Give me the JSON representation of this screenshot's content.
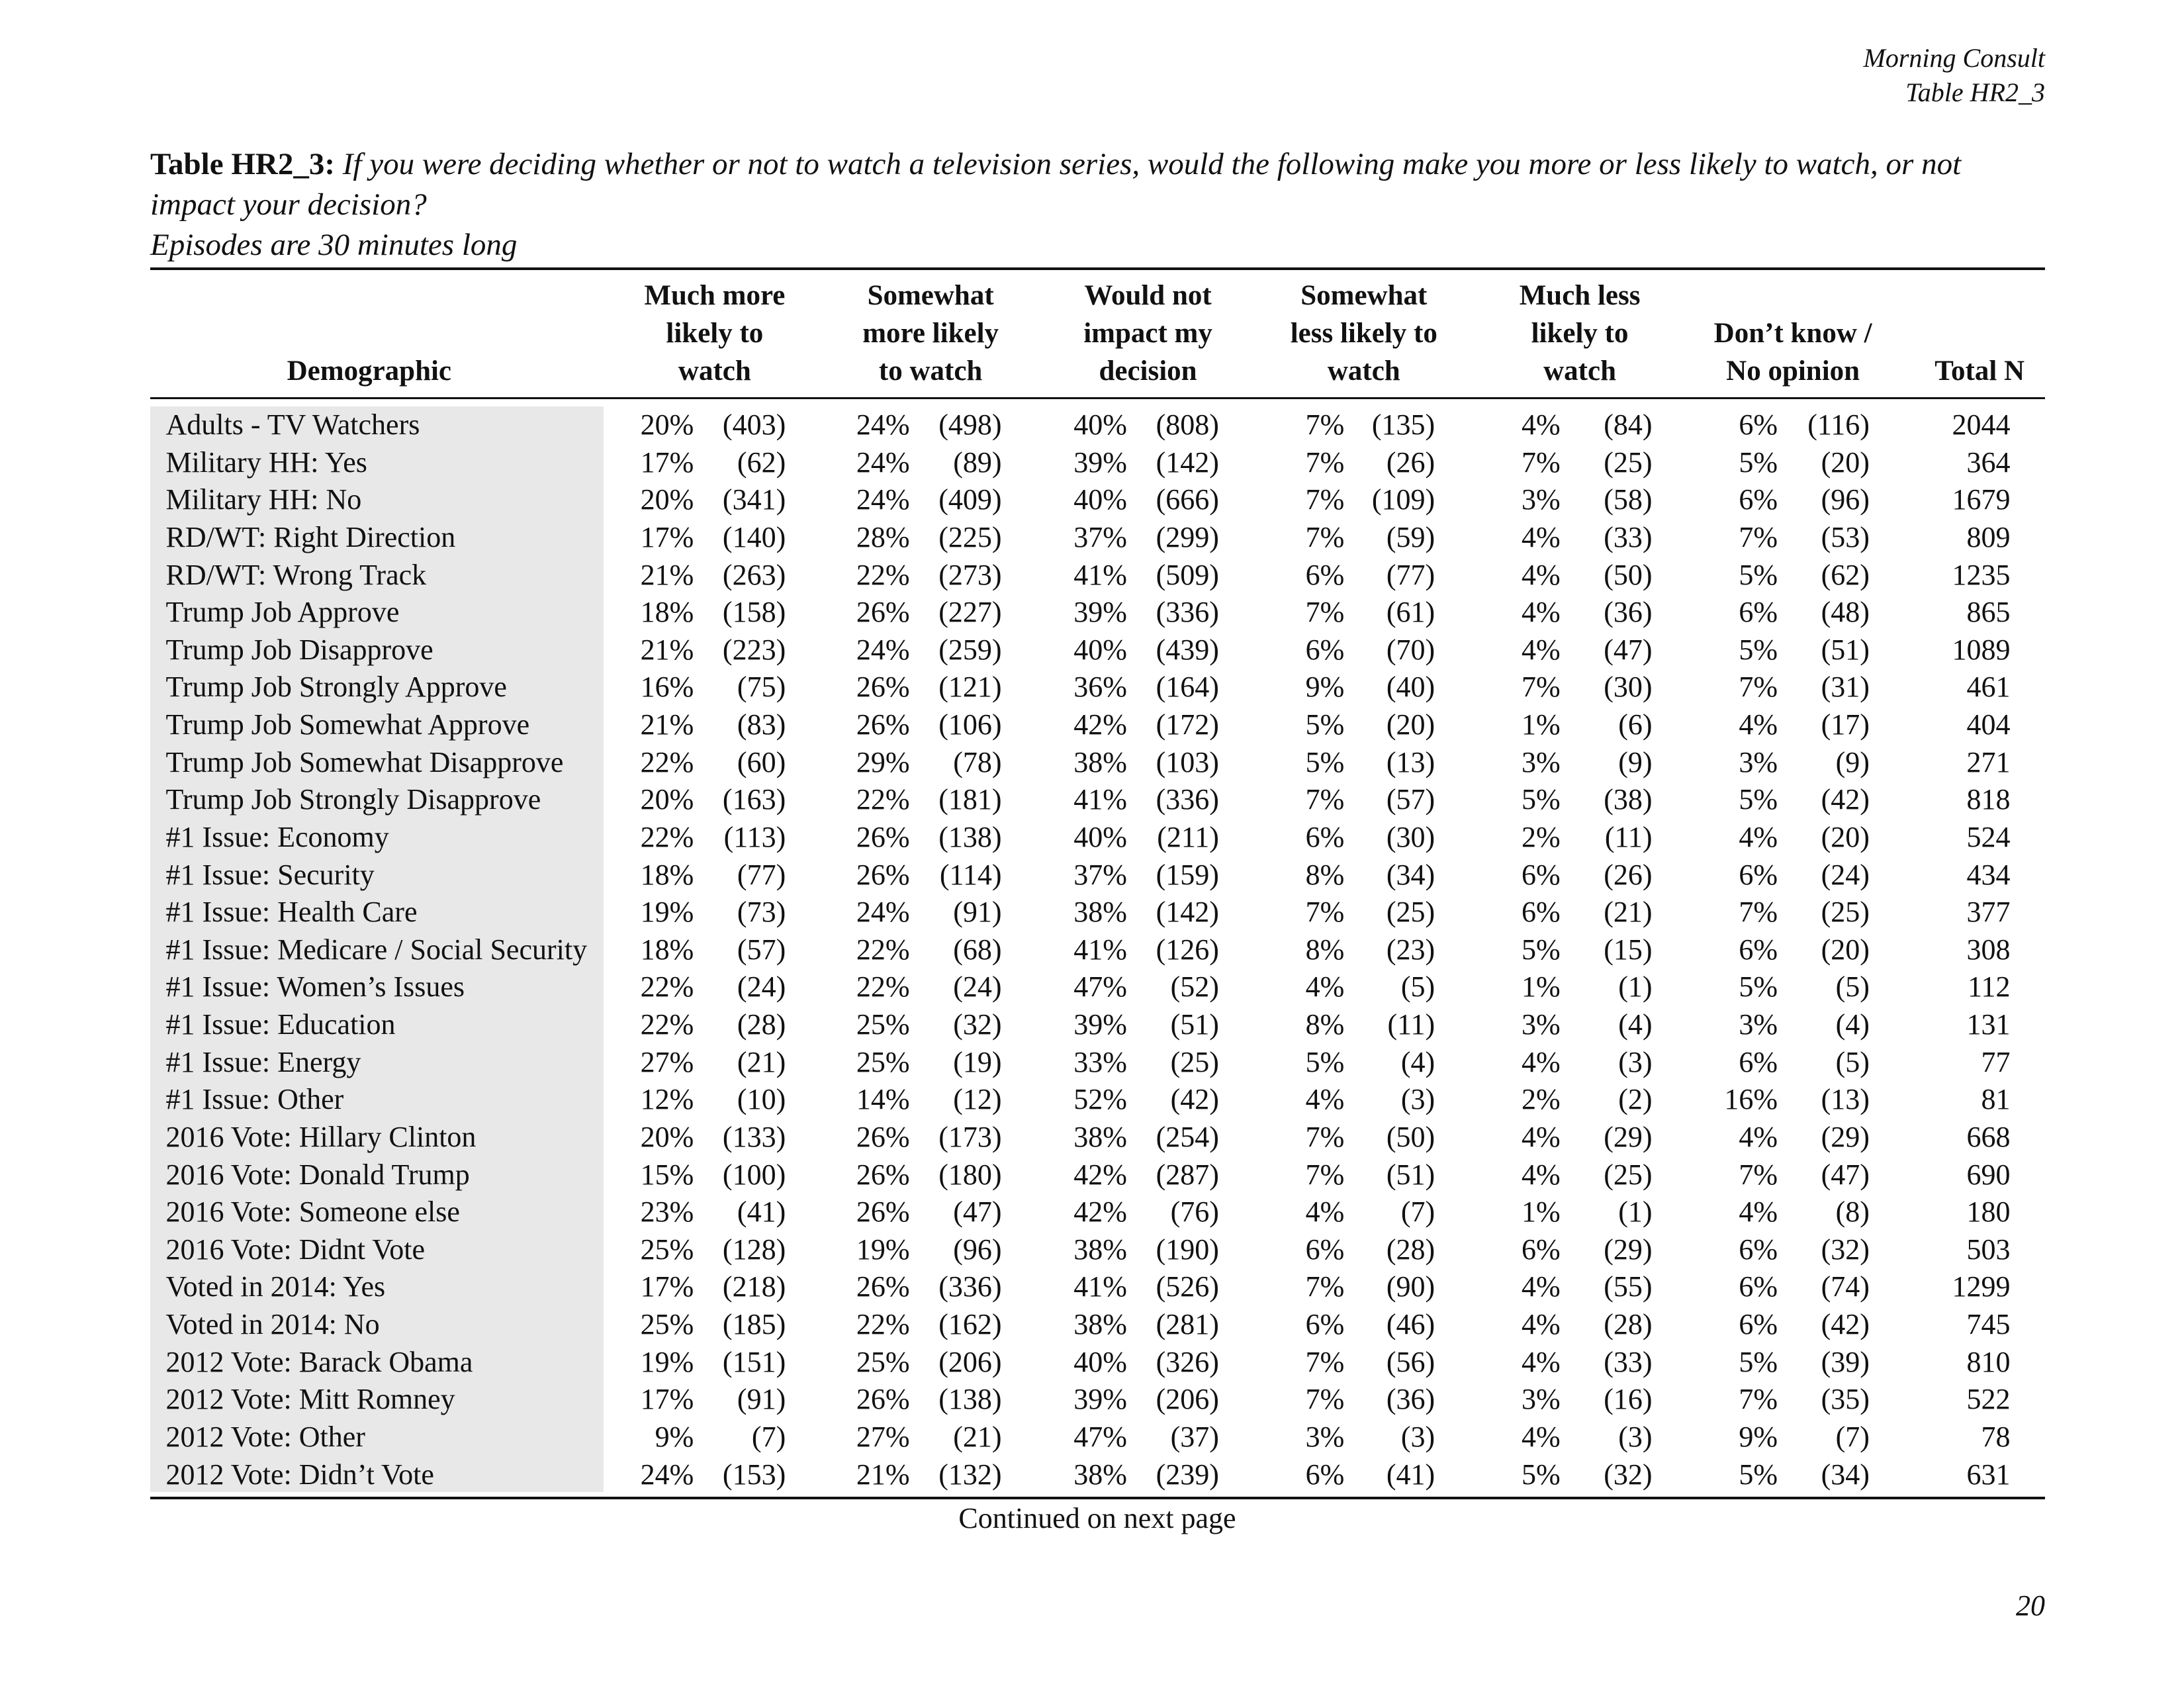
{
  "header": {
    "source": "Morning Consult",
    "table_id": "Table HR2_3"
  },
  "title": {
    "label": "Table HR2_3:",
    "question": "If you were deciding whether or not to watch a television series, would the following make you more or less likely to watch, or not impact your decision?",
    "subtitle": "Episodes are 30 minutes long"
  },
  "table": {
    "columns": [
      [
        "Demographic"
      ],
      [
        "Much more",
        "likely to",
        "watch"
      ],
      [
        "Somewhat",
        "more likely",
        "to watch"
      ],
      [
        "Would not",
        "impact my",
        "decision"
      ],
      [
        "Somewhat",
        "less likely to",
        "watch"
      ],
      [
        "Much less",
        "likely to",
        "watch"
      ],
      [
        "Don’t know /",
        "No opinion"
      ],
      [
        "Total N"
      ]
    ],
    "rows": [
      {
        "label": "Adults - TV Watchers",
        "cells": [
          "20%",
          "(403)",
          "24%",
          "(498)",
          "40%",
          "(808)",
          "7%",
          "(135)",
          "4%",
          "(84)",
          "6%",
          "(116)",
          "2044"
        ]
      },
      {
        "label": "Military HH: Yes",
        "cells": [
          "17%",
          "(62)",
          "24%",
          "(89)",
          "39%",
          "(142)",
          "7%",
          "(26)",
          "7%",
          "(25)",
          "5%",
          "(20)",
          "364"
        ]
      },
      {
        "label": "Military HH: No",
        "cells": [
          "20%",
          "(341)",
          "24%",
          "(409)",
          "40%",
          "(666)",
          "7%",
          "(109)",
          "3%",
          "(58)",
          "6%",
          "(96)",
          "1679"
        ]
      },
      {
        "label": "RD/WT: Right Direction",
        "cells": [
          "17%",
          "(140)",
          "28%",
          "(225)",
          "37%",
          "(299)",
          "7%",
          "(59)",
          "4%",
          "(33)",
          "7%",
          "(53)",
          "809"
        ]
      },
      {
        "label": "RD/WT: Wrong Track",
        "cells": [
          "21%",
          "(263)",
          "22%",
          "(273)",
          "41%",
          "(509)",
          "6%",
          "(77)",
          "4%",
          "(50)",
          "5%",
          "(62)",
          "1235"
        ]
      },
      {
        "label": "Trump Job Approve",
        "cells": [
          "18%",
          "(158)",
          "26%",
          "(227)",
          "39%",
          "(336)",
          "7%",
          "(61)",
          "4%",
          "(36)",
          "6%",
          "(48)",
          "865"
        ]
      },
      {
        "label": "Trump Job Disapprove",
        "cells": [
          "21%",
          "(223)",
          "24%",
          "(259)",
          "40%",
          "(439)",
          "6%",
          "(70)",
          "4%",
          "(47)",
          "5%",
          "(51)",
          "1089"
        ]
      },
      {
        "label": "Trump Job Strongly Approve",
        "cells": [
          "16%",
          "(75)",
          "26%",
          "(121)",
          "36%",
          "(164)",
          "9%",
          "(40)",
          "7%",
          "(30)",
          "7%",
          "(31)",
          "461"
        ]
      },
      {
        "label": "Trump Job Somewhat Approve",
        "cells": [
          "21%",
          "(83)",
          "26%",
          "(106)",
          "42%",
          "(172)",
          "5%",
          "(20)",
          "1%",
          "(6)",
          "4%",
          "(17)",
          "404"
        ]
      },
      {
        "label": "Trump Job Somewhat Disapprove",
        "cells": [
          "22%",
          "(60)",
          "29%",
          "(78)",
          "38%",
          "(103)",
          "5%",
          "(13)",
          "3%",
          "(9)",
          "3%",
          "(9)",
          "271"
        ]
      },
      {
        "label": "Trump Job Strongly Disapprove",
        "cells": [
          "20%",
          "(163)",
          "22%",
          "(181)",
          "41%",
          "(336)",
          "7%",
          "(57)",
          "5%",
          "(38)",
          "5%",
          "(42)",
          "818"
        ]
      },
      {
        "label": "#1 Issue: Economy",
        "cells": [
          "22%",
          "(113)",
          "26%",
          "(138)",
          "40%",
          "(211)",
          "6%",
          "(30)",
          "2%",
          "(11)",
          "4%",
          "(20)",
          "524"
        ]
      },
      {
        "label": "#1 Issue: Security",
        "cells": [
          "18%",
          "(77)",
          "26%",
          "(114)",
          "37%",
          "(159)",
          "8%",
          "(34)",
          "6%",
          "(26)",
          "6%",
          "(24)",
          "434"
        ]
      },
      {
        "label": "#1 Issue: Health Care",
        "cells": [
          "19%",
          "(73)",
          "24%",
          "(91)",
          "38%",
          "(142)",
          "7%",
          "(25)",
          "6%",
          "(21)",
          "7%",
          "(25)",
          "377"
        ]
      },
      {
        "label": "#1 Issue: Medicare / Social Security",
        "cells": [
          "18%",
          "(57)",
          "22%",
          "(68)",
          "41%",
          "(126)",
          "8%",
          "(23)",
          "5%",
          "(15)",
          "6%",
          "(20)",
          "308"
        ]
      },
      {
        "label": "#1 Issue: Women’s Issues",
        "cells": [
          "22%",
          "(24)",
          "22%",
          "(24)",
          "47%",
          "(52)",
          "4%",
          "(5)",
          "1%",
          "(1)",
          "5%",
          "(5)",
          "112"
        ]
      },
      {
        "label": "#1 Issue: Education",
        "cells": [
          "22%",
          "(28)",
          "25%",
          "(32)",
          "39%",
          "(51)",
          "8%",
          "(11)",
          "3%",
          "(4)",
          "3%",
          "(4)",
          "131"
        ]
      },
      {
        "label": "#1 Issue: Energy",
        "cells": [
          "27%",
          "(21)",
          "25%",
          "(19)",
          "33%",
          "(25)",
          "5%",
          "(4)",
          "4%",
          "(3)",
          "6%",
          "(5)",
          "77"
        ]
      },
      {
        "label": "#1 Issue: Other",
        "cells": [
          "12%",
          "(10)",
          "14%",
          "(12)",
          "52%",
          "(42)",
          "4%",
          "(3)",
          "2%",
          "(2)",
          "16%",
          "(13)",
          "81"
        ]
      },
      {
        "label": "2016 Vote: Hillary Clinton",
        "cells": [
          "20%",
          "(133)",
          "26%",
          "(173)",
          "38%",
          "(254)",
          "7%",
          "(50)",
          "4%",
          "(29)",
          "4%",
          "(29)",
          "668"
        ]
      },
      {
        "label": "2016 Vote: Donald Trump",
        "cells": [
          "15%",
          "(100)",
          "26%",
          "(180)",
          "42%",
          "(287)",
          "7%",
          "(51)",
          "4%",
          "(25)",
          "7%",
          "(47)",
          "690"
        ]
      },
      {
        "label": "2016 Vote: Someone else",
        "cells": [
          "23%",
          "(41)",
          "26%",
          "(47)",
          "42%",
          "(76)",
          "4%",
          "(7)",
          "1%",
          "(1)",
          "4%",
          "(8)",
          "180"
        ]
      },
      {
        "label": "2016 Vote: Didnt Vote",
        "cells": [
          "25%",
          "(128)",
          "19%",
          "(96)",
          "38%",
          "(190)",
          "6%",
          "(28)",
          "6%",
          "(29)",
          "6%",
          "(32)",
          "503"
        ]
      },
      {
        "label": "Voted in 2014: Yes",
        "cells": [
          "17%",
          "(218)",
          "26%",
          "(336)",
          "41%",
          "(526)",
          "7%",
          "(90)",
          "4%",
          "(55)",
          "6%",
          "(74)",
          "1299"
        ]
      },
      {
        "label": "Voted in 2014: No",
        "cells": [
          "25%",
          "(185)",
          "22%",
          "(162)",
          "38%",
          "(281)",
          "6%",
          "(46)",
          "4%",
          "(28)",
          "6%",
          "(42)",
          "745"
        ]
      },
      {
        "label": "2012 Vote: Barack Obama",
        "cells": [
          "19%",
          "(151)",
          "25%",
          "(206)",
          "40%",
          "(326)",
          "7%",
          "(56)",
          "4%",
          "(33)",
          "5%",
          "(39)",
          "810"
        ]
      },
      {
        "label": "2012 Vote: Mitt Romney",
        "cells": [
          "17%",
          "(91)",
          "26%",
          "(138)",
          "39%",
          "(206)",
          "7%",
          "(36)",
          "3%",
          "(16)",
          "7%",
          "(35)",
          "522"
        ]
      },
      {
        "label": "2012 Vote: Other",
        "cells": [
          "9%",
          "(7)",
          "27%",
          "(21)",
          "47%",
          "(37)",
          "3%",
          "(3)",
          "4%",
          "(3)",
          "9%",
          "(7)",
          "78"
        ]
      },
      {
        "label": "2012 Vote: Didn’t Vote",
        "cells": [
          "24%",
          "(153)",
          "21%",
          "(132)",
          "38%",
          "(239)",
          "6%",
          "(41)",
          "5%",
          "(32)",
          "5%",
          "(34)",
          "631"
        ]
      }
    ]
  },
  "footer": {
    "continued": "Continued on next page",
    "page_number": "20"
  }
}
